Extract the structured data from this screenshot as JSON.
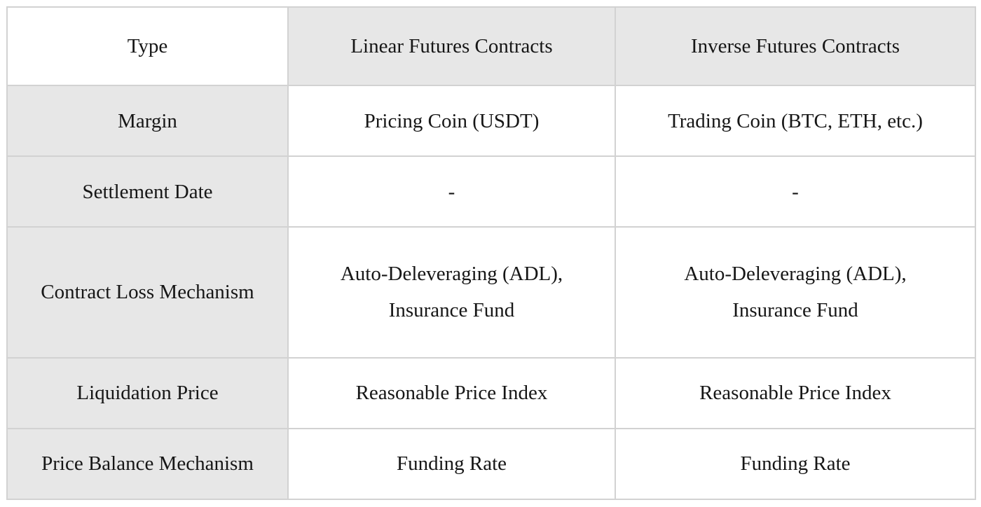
{
  "table": {
    "header": {
      "type": "Type",
      "linear": "Linear Futures Contracts",
      "inverse": "Inverse Futures Contracts"
    },
    "rows": [
      {
        "label": "Margin",
        "linear": "Pricing Coin (USDT)",
        "inverse": "Trading Coin (BTC, ETH, etc.)"
      },
      {
        "label": "Settlement Date",
        "linear": "-",
        "inverse": "-"
      },
      {
        "label": "Contract Loss Mechanism",
        "linear": "Auto-Deleveraging (ADL),\nInsurance Fund",
        "inverse": "Auto-Deleveraging (ADL),\nInsurance Fund"
      },
      {
        "label": "Liquidation Price",
        "linear": "Reasonable Price Index",
        "inverse": "Reasonable Price Index"
      },
      {
        "label": "Price Balance Mechanism",
        "linear": "Funding Rate",
        "inverse": "Funding Rate"
      }
    ],
    "colors": {
      "shaded_bg": "#e7e7e7",
      "cell_bg": "#ffffff",
      "border": "#d2d2d2",
      "text": "#161616"
    }
  }
}
